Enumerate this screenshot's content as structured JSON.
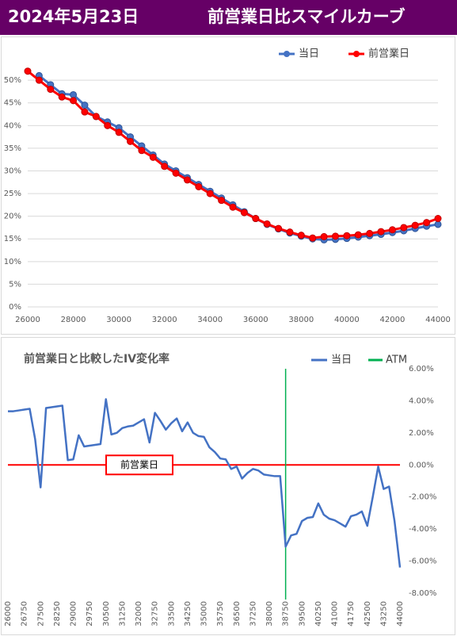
{
  "header": {
    "date": "2024年5月23日",
    "title": "前営業日比スマイルカーブ"
  },
  "chart_data": [
    {
      "type": "line",
      "markers": true,
      "grid": true,
      "x": [
        26000,
        26500,
        27000,
        27500,
        28000,
        28500,
        29000,
        29500,
        30000,
        30500,
        31000,
        31500,
        32000,
        32500,
        33000,
        33500,
        34000,
        34500,
        35000,
        35500,
        36000,
        36500,
        37000,
        37500,
        38000,
        38500,
        39000,
        39500,
        40000,
        40500,
        41000,
        41500,
        42000,
        42500,
        43000,
        43500,
        44000
      ],
      "series": [
        {
          "name": "当日",
          "color": "#4472c4",
          "values": [
            null,
            51,
            49,
            47,
            46.8,
            44.5,
            42,
            40.8,
            39.5,
            37.5,
            35.5,
            33.5,
            31.5,
            30,
            28.5,
            27,
            25.5,
            24,
            22.5,
            21,
            19.5,
            18.2,
            17.2,
            16.3,
            15.6,
            15,
            14.8,
            14.9,
            15.1,
            15.4,
            15.7,
            16,
            16.4,
            16.8,
            17.3,
            17.8,
            18.2
          ]
        },
        {
          "name": "前営業日",
          "color": "#ff0000",
          "values": [
            52,
            50,
            48,
            46.3,
            45.5,
            43,
            42,
            40,
            38.5,
            36.5,
            34.5,
            33,
            31,
            29.5,
            28,
            26.5,
            25,
            23.5,
            22,
            20.8,
            19.5,
            18.3,
            17.3,
            16.5,
            15.8,
            15.2,
            15.5,
            15.6,
            15.7,
            15.9,
            16.2,
            16.6,
            17,
            17.5,
            18,
            18.6,
            19.5
          ]
        }
      ],
      "xlim": [
        26000,
        44000
      ],
      "xticks": [
        26000,
        28000,
        30000,
        32000,
        34000,
        36000,
        38000,
        40000,
        42000,
        44000
      ],
      "ylim": [
        0,
        53
      ],
      "yticks": [
        {
          "value": 0,
          "label": "0%"
        },
        {
          "value": 5,
          "label": "5%"
        },
        {
          "value": 10,
          "label": "10%"
        },
        {
          "value": 15,
          "label": "15%"
        },
        {
          "value": 20,
          "label": "20%"
        },
        {
          "value": 25,
          "label": "25%"
        },
        {
          "value": 30,
          "label": "30%"
        },
        {
          "value": 35,
          "label": "35%"
        },
        {
          "value": 40,
          "label": "40%"
        },
        {
          "value": 45,
          "label": "45%"
        },
        {
          "value": 50,
          "label": "50%"
        }
      ]
    },
    {
      "type": "line",
      "markers": false,
      "grid": false,
      "title": "前営業日と比較したIV変化率",
      "x": [
        26000,
        26250,
        26500,
        26750,
        27000,
        27250,
        27500,
        27750,
        28000,
        28250,
        28500,
        28750,
        29000,
        29250,
        29500,
        29750,
        30000,
        30250,
        30500,
        30750,
        31000,
        31250,
        31500,
        31750,
        32000,
        32250,
        32500,
        32750,
        33000,
        33250,
        33500,
        33750,
        34000,
        34250,
        34500,
        34750,
        35000,
        35250,
        35500,
        35750,
        36000,
        36250,
        36500,
        36750,
        37000,
        37250,
        37500,
        37750,
        38000,
        38250,
        38500,
        38750,
        39000,
        39250,
        39500,
        39750,
        40000,
        40250,
        40500,
        40750,
        41000,
        41250,
        41500,
        41750,
        42000,
        42250,
        42500,
        42750,
        43000,
        43250,
        43500,
        43750,
        44000
      ],
      "series": [
        {
          "name": "当日",
          "color": "#4472c4",
          "values": [
            3.35,
            3.35,
            3.4,
            3.45,
            3.5,
            1.6,
            -1.4,
            3.55,
            3.6,
            3.65,
            3.7,
            0.3,
            0.35,
            1.85,
            1.15,
            1.2,
            1.25,
            1.3,
            4.1,
            1.9,
            2.0,
            2.3,
            2.4,
            2.45,
            2.65,
            2.85,
            1.4,
            3.25,
            2.75,
            2.2,
            2.6,
            2.9,
            2.1,
            2.65,
            2.0,
            1.8,
            1.75,
            1.1,
            0.8,
            0.4,
            0.35,
            -0.25,
            -0.1,
            -0.85,
            -0.5,
            -0.25,
            -0.35,
            -0.6,
            -0.65,
            -0.7,
            -0.7,
            -5.1,
            -4.4,
            -4.3,
            -3.5,
            -3.3,
            -3.25,
            -2.4,
            -3.1,
            -3.35,
            -3.45,
            -3.65,
            -3.85,
            -3.2,
            -3.1,
            -2.9,
            -3.8,
            -2.0,
            -0.1,
            -1.5,
            -1.35,
            -3.5,
            -6.4
          ]
        }
      ],
      "vline": {
        "name": "ATM",
        "color": "#00b050",
        "x": 38750
      },
      "reference_line": {
        "value": 0,
        "label": "前営業日",
        "color": "#ff0000"
      },
      "xlim": [
        26000,
        44000
      ],
      "xticks": [
        26000,
        26750,
        27500,
        28250,
        29000,
        29750,
        30500,
        31250,
        32000,
        32750,
        33500,
        34250,
        35000,
        35750,
        36500,
        37250,
        38000,
        38750,
        39500,
        40250,
        41000,
        41750,
        42500,
        43250,
        44000
      ],
      "ylim": [
        -8,
        6
      ],
      "yticks": [
        {
          "value": 6,
          "label": "6.00%"
        },
        {
          "value": 4,
          "label": "4.00%"
        },
        {
          "value": 2,
          "label": "2.00%"
        },
        {
          "value": 0,
          "label": "0.00%"
        },
        {
          "value": -2,
          "label": "-2.00%"
        },
        {
          "value": -4,
          "label": "-4.00%"
        },
        {
          "value": -6,
          "label": "-6.00%"
        },
        {
          "value": -8,
          "label": "-8.00%"
        }
      ]
    }
  ]
}
